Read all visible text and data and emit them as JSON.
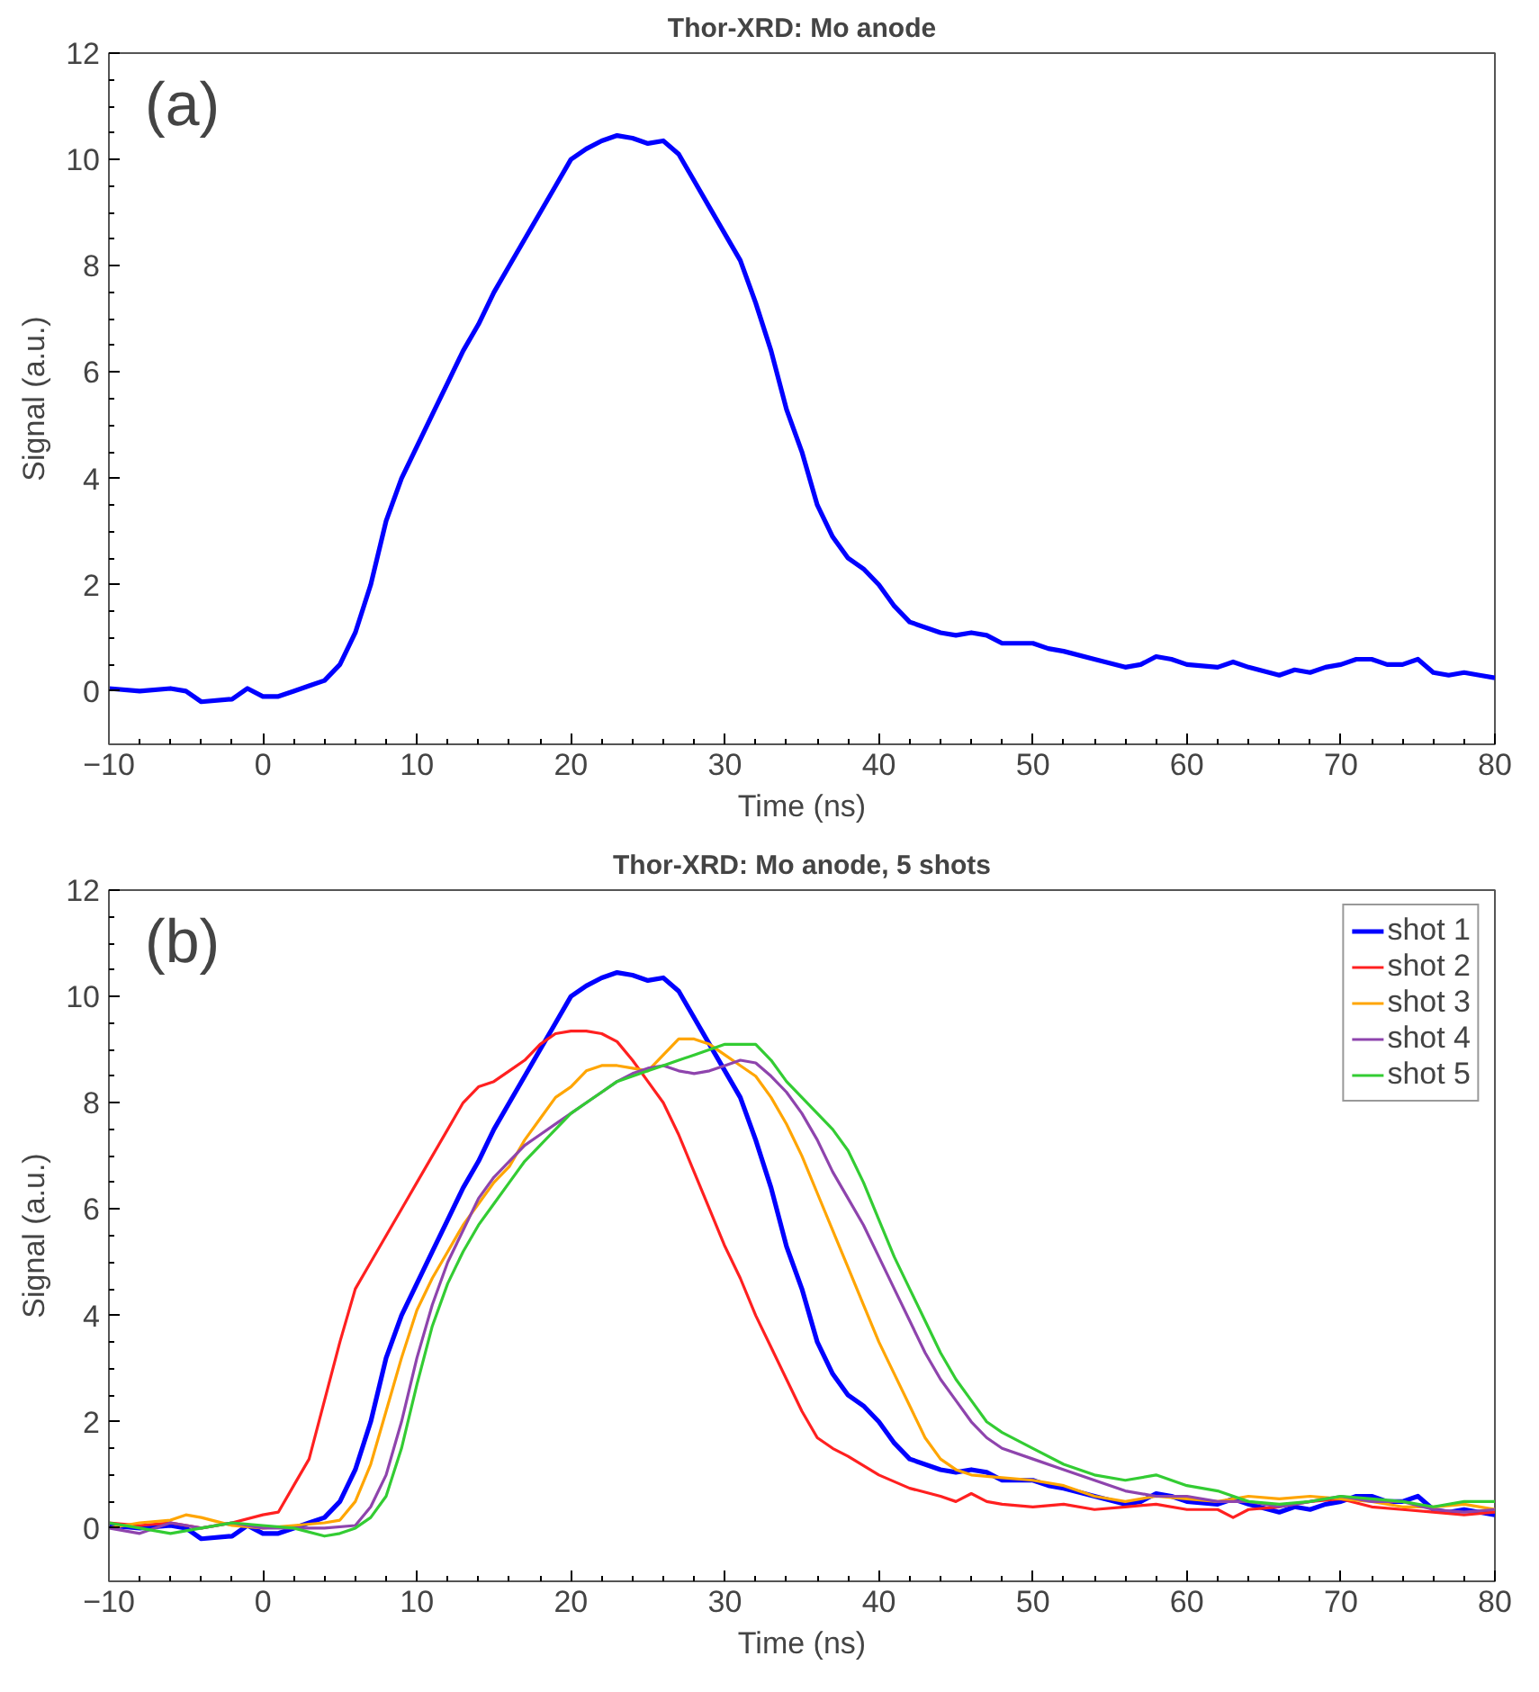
{
  "chart_data": [
    {
      "type": "line",
      "title": "Thor-XRD: Mo anode",
      "xlabel": "Time (ns)",
      "ylabel": "Signal (a.u.)",
      "annotations": [
        "(a)"
      ],
      "xlim": [
        -10,
        80
      ],
      "ylim": [
        -1,
        12
      ],
      "xticks": [
        -10,
        0,
        10,
        20,
        30,
        40,
        50,
        60,
        70,
        80
      ],
      "yticks": [
        0,
        2,
        4,
        6,
        8,
        10,
        12
      ],
      "grid": false,
      "legend": false,
      "series": [
        {
          "color": "#0000ff",
          "x": [
            -10,
            -8,
            -6,
            -5,
            -4,
            -2,
            -1,
            0,
            1,
            2,
            3,
            4,
            5,
            6,
            7,
            8,
            9,
            10,
            11,
            12,
            13,
            14,
            15,
            16,
            17,
            18,
            19,
            20,
            21,
            22,
            23,
            24,
            25,
            26,
            27,
            28,
            29,
            30,
            31,
            32,
            33,
            34,
            35,
            36,
            37,
            38,
            39,
            40,
            41,
            42,
            44,
            45,
            46,
            47,
            48,
            50,
            51,
            52,
            54,
            56,
            57,
            58,
            59,
            60,
            62,
            63,
            64,
            66,
            67,
            68,
            69,
            70,
            71,
            72,
            73,
            74,
            75,
            76,
            77,
            78,
            79,
            80
          ],
          "values": [
            0.05,
            0.0,
            0.05,
            0.0,
            -0.2,
            -0.15,
            0.05,
            -0.1,
            -0.1,
            0.0,
            0.1,
            0.2,
            0.5,
            1.1,
            2.0,
            3.2,
            4.0,
            4.6,
            5.2,
            5.8,
            6.4,
            6.9,
            7.5,
            8.0,
            8.5,
            9.0,
            9.5,
            10.0,
            10.2,
            10.35,
            10.45,
            10.4,
            10.3,
            10.35,
            10.1,
            9.6,
            9.1,
            8.6,
            8.1,
            7.3,
            6.4,
            5.3,
            4.5,
            3.5,
            2.9,
            2.5,
            2.3,
            2.0,
            1.6,
            1.3,
            1.1,
            1.05,
            1.1,
            1.05,
            0.9,
            0.9,
            0.8,
            0.75,
            0.6,
            0.45,
            0.5,
            0.65,
            0.6,
            0.5,
            0.45,
            0.55,
            0.45,
            0.3,
            0.4,
            0.35,
            0.45,
            0.5,
            0.6,
            0.6,
            0.5,
            0.5,
            0.6,
            0.35,
            0.3,
            0.35,
            0.3,
            0.25
          ]
        }
      ]
    },
    {
      "type": "line",
      "title": "Thor-XRD: Mo anode, 5 shots",
      "xlabel": "Time (ns)",
      "ylabel": "Signal (a.u.)",
      "annotations": [
        "(b)"
      ],
      "xlim": [
        -10,
        80
      ],
      "ylim": [
        -1,
        12
      ],
      "xticks": [
        -10,
        0,
        10,
        20,
        30,
        40,
        50,
        60,
        70,
        80
      ],
      "yticks": [
        0,
        2,
        4,
        6,
        8,
        10,
        12
      ],
      "grid": false,
      "legend": "top right",
      "series": [
        {
          "name": "shot 1",
          "color": "#0000ff",
          "x": [
            -10,
            -8,
            -6,
            -5,
            -4,
            -2,
            -1,
            0,
            1,
            2,
            3,
            4,
            5,
            6,
            7,
            8,
            9,
            10,
            11,
            12,
            13,
            14,
            15,
            16,
            17,
            18,
            19,
            20,
            21,
            22,
            23,
            24,
            25,
            26,
            27,
            28,
            29,
            30,
            31,
            32,
            33,
            34,
            35,
            36,
            37,
            38,
            39,
            40,
            41,
            42,
            44,
            45,
            46,
            47,
            48,
            50,
            51,
            52,
            54,
            56,
            57,
            58,
            59,
            60,
            62,
            63,
            64,
            66,
            67,
            68,
            69,
            70,
            71,
            72,
            73,
            74,
            75,
            76,
            77,
            78,
            79,
            80
          ],
          "values": [
            0.05,
            0.0,
            0.05,
            0.0,
            -0.2,
            -0.15,
            0.05,
            -0.1,
            -0.1,
            0.0,
            0.1,
            0.2,
            0.5,
            1.1,
            2.0,
            3.2,
            4.0,
            4.6,
            5.2,
            5.8,
            6.4,
            6.9,
            7.5,
            8.0,
            8.5,
            9.0,
            9.5,
            10.0,
            10.2,
            10.35,
            10.45,
            10.4,
            10.3,
            10.35,
            10.1,
            9.6,
            9.1,
            8.6,
            8.1,
            7.3,
            6.4,
            5.3,
            4.5,
            3.5,
            2.9,
            2.5,
            2.3,
            2.0,
            1.6,
            1.3,
            1.1,
            1.05,
            1.1,
            1.05,
            0.9,
            0.9,
            0.8,
            0.75,
            0.6,
            0.45,
            0.5,
            0.65,
            0.6,
            0.5,
            0.45,
            0.55,
            0.45,
            0.3,
            0.4,
            0.35,
            0.45,
            0.5,
            0.6,
            0.6,
            0.5,
            0.5,
            0.6,
            0.35,
            0.3,
            0.35,
            0.3,
            0.25
          ]
        },
        {
          "name": "shot 2",
          "color": "#ff2020",
          "x": [
            -10,
            -8,
            -6,
            -4,
            -2,
            0,
            1,
            2,
            3,
            4,
            5,
            6,
            7,
            8,
            9,
            10,
            11,
            12,
            13,
            14,
            15,
            16,
            17,
            18,
            19,
            20,
            21,
            22,
            23,
            24,
            25,
            26,
            27,
            28,
            29,
            30,
            31,
            32,
            33,
            34,
            35,
            36,
            37,
            38,
            40,
            42,
            44,
            45,
            46,
            47,
            48,
            50,
            52,
            54,
            56,
            58,
            60,
            62,
            63,
            64,
            66,
            68,
            70,
            72,
            74,
            76,
            78,
            80
          ],
          "values": [
            0.1,
            0.05,
            0.1,
            0.0,
            0.1,
            0.25,
            0.3,
            0.8,
            1.3,
            2.4,
            3.5,
            4.5,
            5.0,
            5.5,
            6.0,
            6.5,
            7.0,
            7.5,
            8.0,
            8.3,
            8.4,
            8.6,
            8.8,
            9.1,
            9.3,
            9.35,
            9.35,
            9.3,
            9.15,
            8.8,
            8.4,
            8.0,
            7.4,
            6.7,
            6.0,
            5.3,
            4.7,
            4.0,
            3.4,
            2.8,
            2.2,
            1.7,
            1.5,
            1.35,
            1.0,
            0.75,
            0.6,
            0.5,
            0.65,
            0.5,
            0.45,
            0.4,
            0.45,
            0.35,
            0.4,
            0.45,
            0.35,
            0.35,
            0.2,
            0.35,
            0.4,
            0.5,
            0.55,
            0.4,
            0.35,
            0.3,
            0.25,
            0.3
          ]
        },
        {
          "name": "shot 3",
          "color": "#ffa500",
          "x": [
            -10,
            -8,
            -6,
            -5,
            -4,
            -2,
            0,
            2,
            4,
            5,
            6,
            7,
            8,
            9,
            10,
            11,
            12,
            13,
            14,
            15,
            16,
            17,
            18,
            19,
            20,
            21,
            22,
            23,
            24,
            25,
            26,
            27,
            28,
            29,
            30,
            31,
            32,
            33,
            34,
            35,
            36,
            37,
            38,
            39,
            40,
            41,
            42,
            43,
            44,
            45,
            46,
            48,
            50,
            52,
            54,
            56,
            58,
            60,
            62,
            64,
            66,
            68,
            70,
            72,
            74,
            76,
            78,
            80
          ],
          "values": [
            0.0,
            0.1,
            0.15,
            0.25,
            0.2,
            0.05,
            0.0,
            0.05,
            0.1,
            0.15,
            0.5,
            1.2,
            2.2,
            3.2,
            4.1,
            4.7,
            5.2,
            5.7,
            6.1,
            6.5,
            6.8,
            7.3,
            7.7,
            8.1,
            8.3,
            8.6,
            8.7,
            8.7,
            8.65,
            8.6,
            8.9,
            9.2,
            9.2,
            9.1,
            8.9,
            8.7,
            8.5,
            8.1,
            7.6,
            7.0,
            6.3,
            5.6,
            4.9,
            4.2,
            3.5,
            2.9,
            2.3,
            1.7,
            1.3,
            1.1,
            1.0,
            0.95,
            0.9,
            0.8,
            0.6,
            0.5,
            0.6,
            0.55,
            0.5,
            0.6,
            0.55,
            0.6,
            0.55,
            0.5,
            0.4,
            0.4,
            0.45,
            0.35
          ]
        },
        {
          "name": "shot 4",
          "color": "#8e44ad",
          "x": [
            -10,
            -8,
            -6,
            -4,
            -2,
            0,
            2,
            4,
            6,
            7,
            8,
            9,
            10,
            11,
            12,
            13,
            14,
            15,
            16,
            17,
            18,
            19,
            20,
            21,
            22,
            23,
            24,
            25,
            26,
            27,
            28,
            29,
            30,
            31,
            32,
            33,
            34,
            35,
            36,
            37,
            38,
            39,
            40,
            41,
            42,
            43,
            44,
            45,
            46,
            47,
            48,
            50,
            52,
            54,
            56,
            58,
            60,
            62,
            64,
            66,
            68,
            70,
            72,
            74,
            76,
            78,
            80
          ],
          "values": [
            0.0,
            -0.1,
            0.1,
            0.0,
            0.1,
            0.0,
            0.0,
            0.0,
            0.05,
            0.4,
            1.0,
            2.0,
            3.2,
            4.2,
            5.0,
            5.6,
            6.2,
            6.6,
            6.9,
            7.2,
            7.4,
            7.6,
            7.8,
            8.0,
            8.2,
            8.4,
            8.55,
            8.65,
            8.7,
            8.6,
            8.55,
            8.6,
            8.7,
            8.8,
            8.75,
            8.5,
            8.2,
            7.8,
            7.3,
            6.7,
            6.2,
            5.7,
            5.1,
            4.5,
            3.9,
            3.3,
            2.8,
            2.4,
            2.0,
            1.7,
            1.5,
            1.3,
            1.1,
            0.9,
            0.7,
            0.6,
            0.6,
            0.5,
            0.5,
            0.4,
            0.5,
            0.6,
            0.5,
            0.5,
            0.35,
            0.3,
            0.35
          ]
        },
        {
          "name": "shot 5",
          "color": "#33cc33",
          "x": [
            -10,
            -8,
            -6,
            -4,
            -2,
            0,
            2,
            4,
            5,
            6,
            7,
            8,
            9,
            10,
            11,
            12,
            13,
            14,
            15,
            16,
            17,
            18,
            19,
            20,
            21,
            22,
            23,
            24,
            25,
            26,
            27,
            28,
            29,
            30,
            31,
            32,
            33,
            34,
            35,
            36,
            37,
            38,
            39,
            40,
            41,
            42,
            43,
            44,
            45,
            46,
            47,
            48,
            50,
            52,
            54,
            56,
            58,
            60,
            62,
            64,
            66,
            68,
            70,
            72,
            74,
            76,
            78,
            80
          ],
          "values": [
            0.1,
            0.0,
            -0.1,
            0.0,
            0.1,
            0.05,
            0.0,
            -0.15,
            -0.1,
            0.0,
            0.2,
            0.6,
            1.5,
            2.7,
            3.8,
            4.6,
            5.2,
            5.7,
            6.1,
            6.5,
            6.9,
            7.2,
            7.5,
            7.8,
            8.0,
            8.2,
            8.4,
            8.5,
            8.6,
            8.7,
            8.8,
            8.9,
            9.0,
            9.1,
            9.1,
            9.1,
            8.8,
            8.4,
            8.1,
            7.8,
            7.5,
            7.1,
            6.5,
            5.8,
            5.1,
            4.5,
            3.9,
            3.3,
            2.8,
            2.4,
            2.0,
            1.8,
            1.5,
            1.2,
            1.0,
            0.9,
            1.0,
            0.8,
            0.7,
            0.5,
            0.45,
            0.5,
            0.6,
            0.55,
            0.5,
            0.4,
            0.5,
            0.5
          ]
        }
      ]
    }
  ]
}
